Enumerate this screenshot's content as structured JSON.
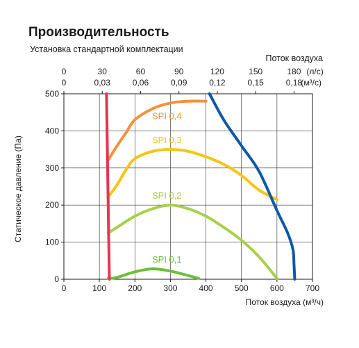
{
  "chart_data": {
    "type": "line",
    "title": "Производительность",
    "subtitle": "Установка стандартной комплектации",
    "xlabel": "Поток воздуха (м³/ч)",
    "ylabel": "Статическое давление (Па)",
    "top_axis_label": "Поток воздуха",
    "xlim": [
      0,
      700
    ],
    "ylim": [
      0,
      500
    ],
    "x_ticks": [
      0,
      100,
      200,
      300,
      400,
      500,
      600,
      700
    ],
    "y_ticks": [
      0,
      100,
      200,
      300,
      400,
      500
    ],
    "top_ticks_ls": [
      "0",
      "30",
      "60",
      "90",
      "120",
      "150",
      "180"
    ],
    "top_ticks_m3s": [
      "0",
      "0,03",
      "0,06",
      "0,09",
      "0,12",
      "0,15",
      "0,18"
    ],
    "top_unit_ls": "(л/с)",
    "top_unit_m3s": "(м³/с)",
    "grid": true,
    "series": [
      {
        "name": "SPI 0,1",
        "color": "#6cbf3a",
        "points": [
          [
            125,
            2
          ],
          [
            150,
            5
          ],
          [
            200,
            20
          ],
          [
            250,
            28
          ],
          [
            300,
            22
          ],
          [
            350,
            10
          ],
          [
            380,
            2
          ]
        ],
        "label_at": [
          290,
          45
        ]
      },
      {
        "name": "SPI 0,2",
        "color": "#a8d04a",
        "points": [
          [
            125,
            125
          ],
          [
            150,
            140
          ],
          [
            200,
            170
          ],
          [
            250,
            190
          ],
          [
            300,
            200
          ],
          [
            350,
            190
          ],
          [
            400,
            170
          ],
          [
            450,
            140
          ],
          [
            500,
            105
          ],
          [
            550,
            60
          ],
          [
            600,
            2
          ]
        ],
        "label_at": [
          290,
          217
        ]
      },
      {
        "name": "SPI 0,3",
        "color": "#f6c416",
        "points": [
          [
            125,
            222
          ],
          [
            150,
            255
          ],
          [
            175,
            295
          ],
          [
            200,
            325
          ],
          [
            250,
            345
          ],
          [
            300,
            350
          ],
          [
            350,
            345
          ],
          [
            400,
            330
          ],
          [
            450,
            310
          ],
          [
            500,
            280
          ],
          [
            550,
            240
          ],
          [
            600,
            215
          ]
        ],
        "label_at": [
          290,
          367
        ]
      },
      {
        "name": "SPI 0,4",
        "color": "#f3923a",
        "points": [
          [
            125,
            322
          ],
          [
            150,
            360
          ],
          [
            175,
            395
          ],
          [
            200,
            430
          ],
          [
            250,
            460
          ],
          [
            300,
            475
          ],
          [
            350,
            480
          ],
          [
            400,
            480
          ]
        ],
        "label_at": [
          290,
          432
        ]
      },
      {
        "name": "",
        "color": "#0c5aa6",
        "points": [
          [
            410,
            500
          ],
          [
            450,
            430
          ],
          [
            500,
            360
          ],
          [
            550,
            290
          ],
          [
            600,
            185
          ],
          [
            630,
            125
          ],
          [
            645,
            80
          ],
          [
            648,
            40
          ],
          [
            650,
            0
          ]
        ]
      },
      {
        "name": "",
        "color": "#e8334f",
        "points": [
          [
            120,
            500
          ],
          [
            122,
            375
          ],
          [
            124,
            250
          ],
          [
            126,
            125
          ],
          [
            128,
            0
          ]
        ]
      }
    ]
  }
}
